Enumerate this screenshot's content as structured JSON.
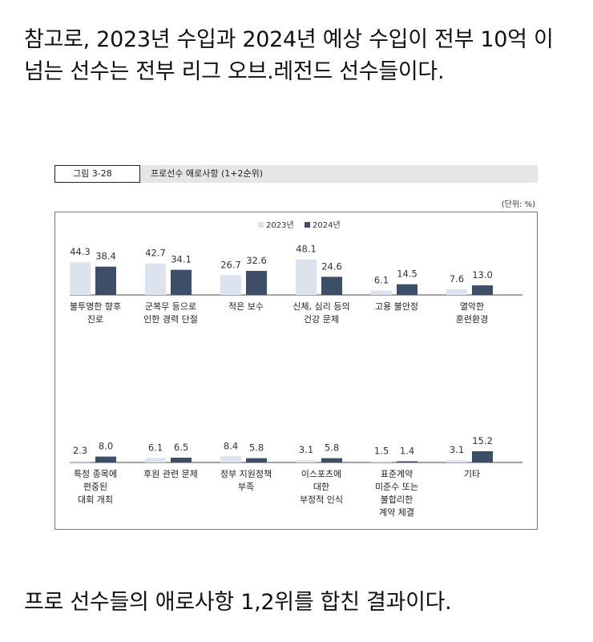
{
  "intro_text": "참고로, 2023년 수입과 2024년 예상 수입이 전부 10억 이 넘는 선수는 전부 리그 오브.레전드 선수들이다.",
  "figure": {
    "number": "그림 3-28",
    "title": "프로선수 애로사항 (1+2순위)",
    "unit": "(단위: %)"
  },
  "chart_data": {
    "type": "bar",
    "unit": "%",
    "legend_position": "top-center",
    "grid": false,
    "series": [
      {
        "name": "2023년",
        "color": "#dce3ef"
      },
      {
        "name": "2024년",
        "color": "#3d4e69"
      }
    ],
    "panels": [
      {
        "categories": [
          [
            "불투명한 향후",
            "진로"
          ],
          [
            "군복무 등으로",
            "인한 경력 단절"
          ],
          [
            "적은 보수"
          ],
          [
            "신체, 심리 등의",
            "건강 문제"
          ],
          [
            "고용 불안정"
          ],
          [
            "열악한",
            "훈련환경"
          ]
        ],
        "values_2023": [
          44.3,
          42.7,
          26.7,
          48.1,
          6.1,
          7.6
        ],
        "values_2024": [
          38.4,
          34.1,
          32.6,
          24.6,
          14.5,
          13.0
        ]
      },
      {
        "categories": [
          [
            "특정 종목에",
            "편중된",
            "대회 개최"
          ],
          [
            "후원 관련 문제"
          ],
          [
            "정부 지원정책",
            "부족"
          ],
          [
            "이스포츠에",
            "대한",
            "부정적 인식"
          ],
          [
            "표준계약",
            "미준수 또는",
            "불합리한",
            "계약 체결"
          ],
          [
            "기타"
          ]
        ],
        "values_2023": [
          2.3,
          6.1,
          8.4,
          3.1,
          1.5,
          3.1
        ],
        "values_2024": [
          8.0,
          6.5,
          5.8,
          5.8,
          1.4,
          15.2
        ]
      }
    ]
  },
  "outro_text": "프로 선수들의 애로사항 1,2위를 합친 결과이다."
}
